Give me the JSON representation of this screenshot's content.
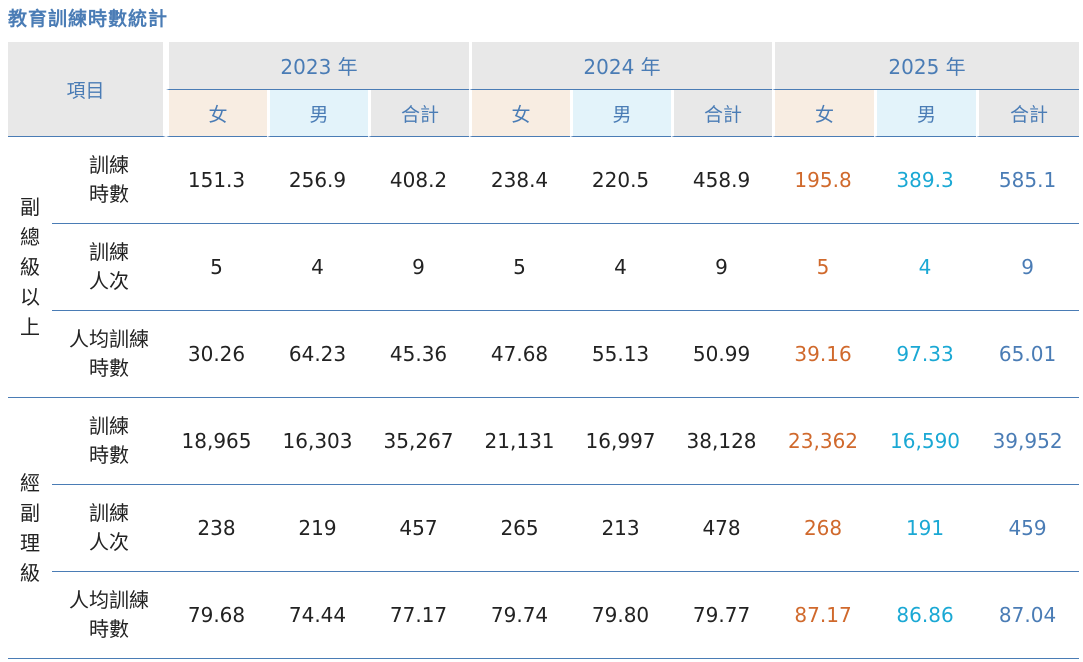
{
  "title": "教育訓練時數統計",
  "header": {
    "item_label": "項目",
    "years": [
      "2023 年",
      "2024 年",
      "2025 年"
    ],
    "sub_labels": [
      "女",
      "男",
      "合計"
    ]
  },
  "groups": [
    {
      "label": "副總級以上",
      "label_chars": [
        "副",
        "總",
        "級",
        "以",
        "上"
      ],
      "rows": [
        {
          "metric_lines": [
            "訓練",
            "時數"
          ],
          "values": [
            "151.3",
            "256.9",
            "408.2",
            "238.4",
            "220.5",
            "458.9",
            "195.8",
            "389.3",
            "585.1"
          ]
        },
        {
          "metric_lines": [
            "訓練",
            "人次"
          ],
          "values": [
            "5",
            "4",
            "9",
            "5",
            "4",
            "9",
            "5",
            "4",
            "9"
          ]
        },
        {
          "metric_lines": [
            "人均訓練",
            "時數"
          ],
          "values": [
            "30.26",
            "64.23",
            "45.36",
            "47.68",
            "55.13",
            "50.99",
            "39.16",
            "97.33",
            "65.01"
          ]
        }
      ]
    },
    {
      "label": "經副理級",
      "label_chars": [
        "經",
        "副",
        "理",
        "級"
      ],
      "rows": [
        {
          "metric_lines": [
            "訓練",
            "時數"
          ],
          "values": [
            "18,965",
            "16,303",
            "35,267",
            "21,131",
            "16,997",
            "38,128",
            "23,362",
            "16,590",
            "39,952"
          ]
        },
        {
          "metric_lines": [
            "訓練",
            "人次"
          ],
          "values": [
            "238",
            "219",
            "457",
            "265",
            "213",
            "478",
            "268",
            "191",
            "459"
          ]
        },
        {
          "metric_lines": [
            "人均訓練",
            "時數"
          ],
          "values": [
            "79.68",
            "74.44",
            "77.17",
            "79.74",
            "79.80",
            "79.77",
            "87.17",
            "86.86",
            "87.04"
          ]
        }
      ]
    }
  ],
  "colors": {
    "accent_blue": "#4a7cb5",
    "female_2025": "#d0692c",
    "male_2025": "#1aa8d4",
    "female_header_bg": "#f8ede2",
    "male_header_bg": "#e3f3fa",
    "header_bg": "#e8e8e8"
  }
}
